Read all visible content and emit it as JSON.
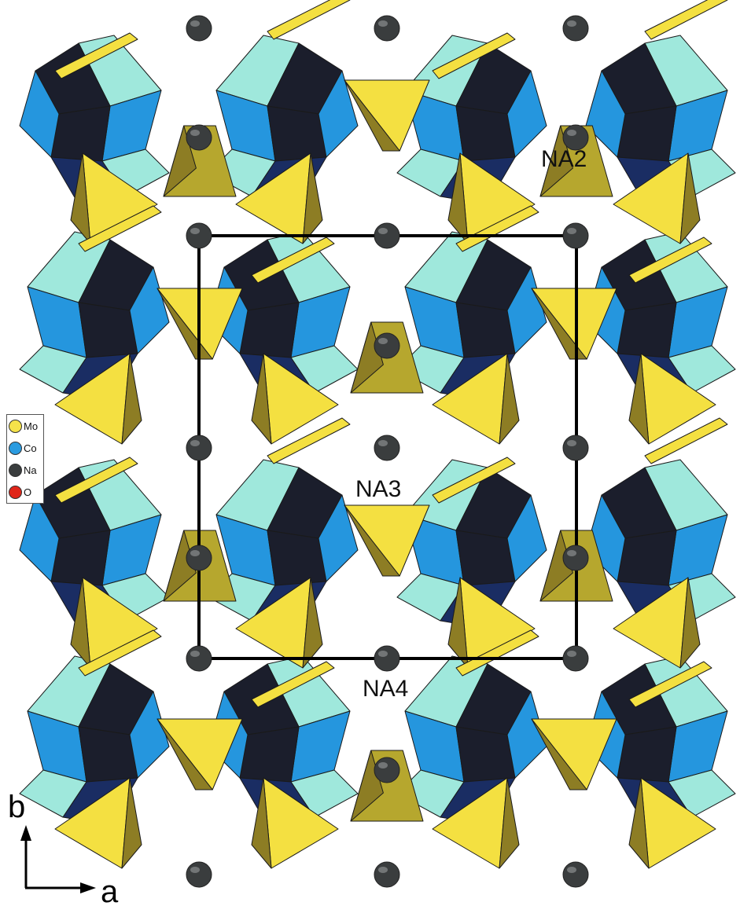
{
  "site_labels": {
    "na2": "NA2",
    "na3": "NA3",
    "na4": "NA4"
  },
  "axes": {
    "b": "b",
    "a": "a"
  },
  "legend": {
    "items": [
      {
        "label": "Mo",
        "color": "#f5e24a"
      },
      {
        "label": "Co",
        "color": "#2a9be0"
      },
      {
        "label": "Na",
        "color": "#3a3d3e"
      },
      {
        "label": "O",
        "color": "#e0261a"
      }
    ]
  },
  "colors": {
    "co_light": "#9fe8dc",
    "co_mid": "#2596de",
    "co_dark": "#1b1e2c",
    "co_navy": "#1a2d63",
    "mo_yellow": "#f4e041",
    "mo_olive": "#8d7d24",
    "mo_olive_light": "#b6a72e",
    "na_atom": "#3a3d3e",
    "cell": "#000000"
  }
}
